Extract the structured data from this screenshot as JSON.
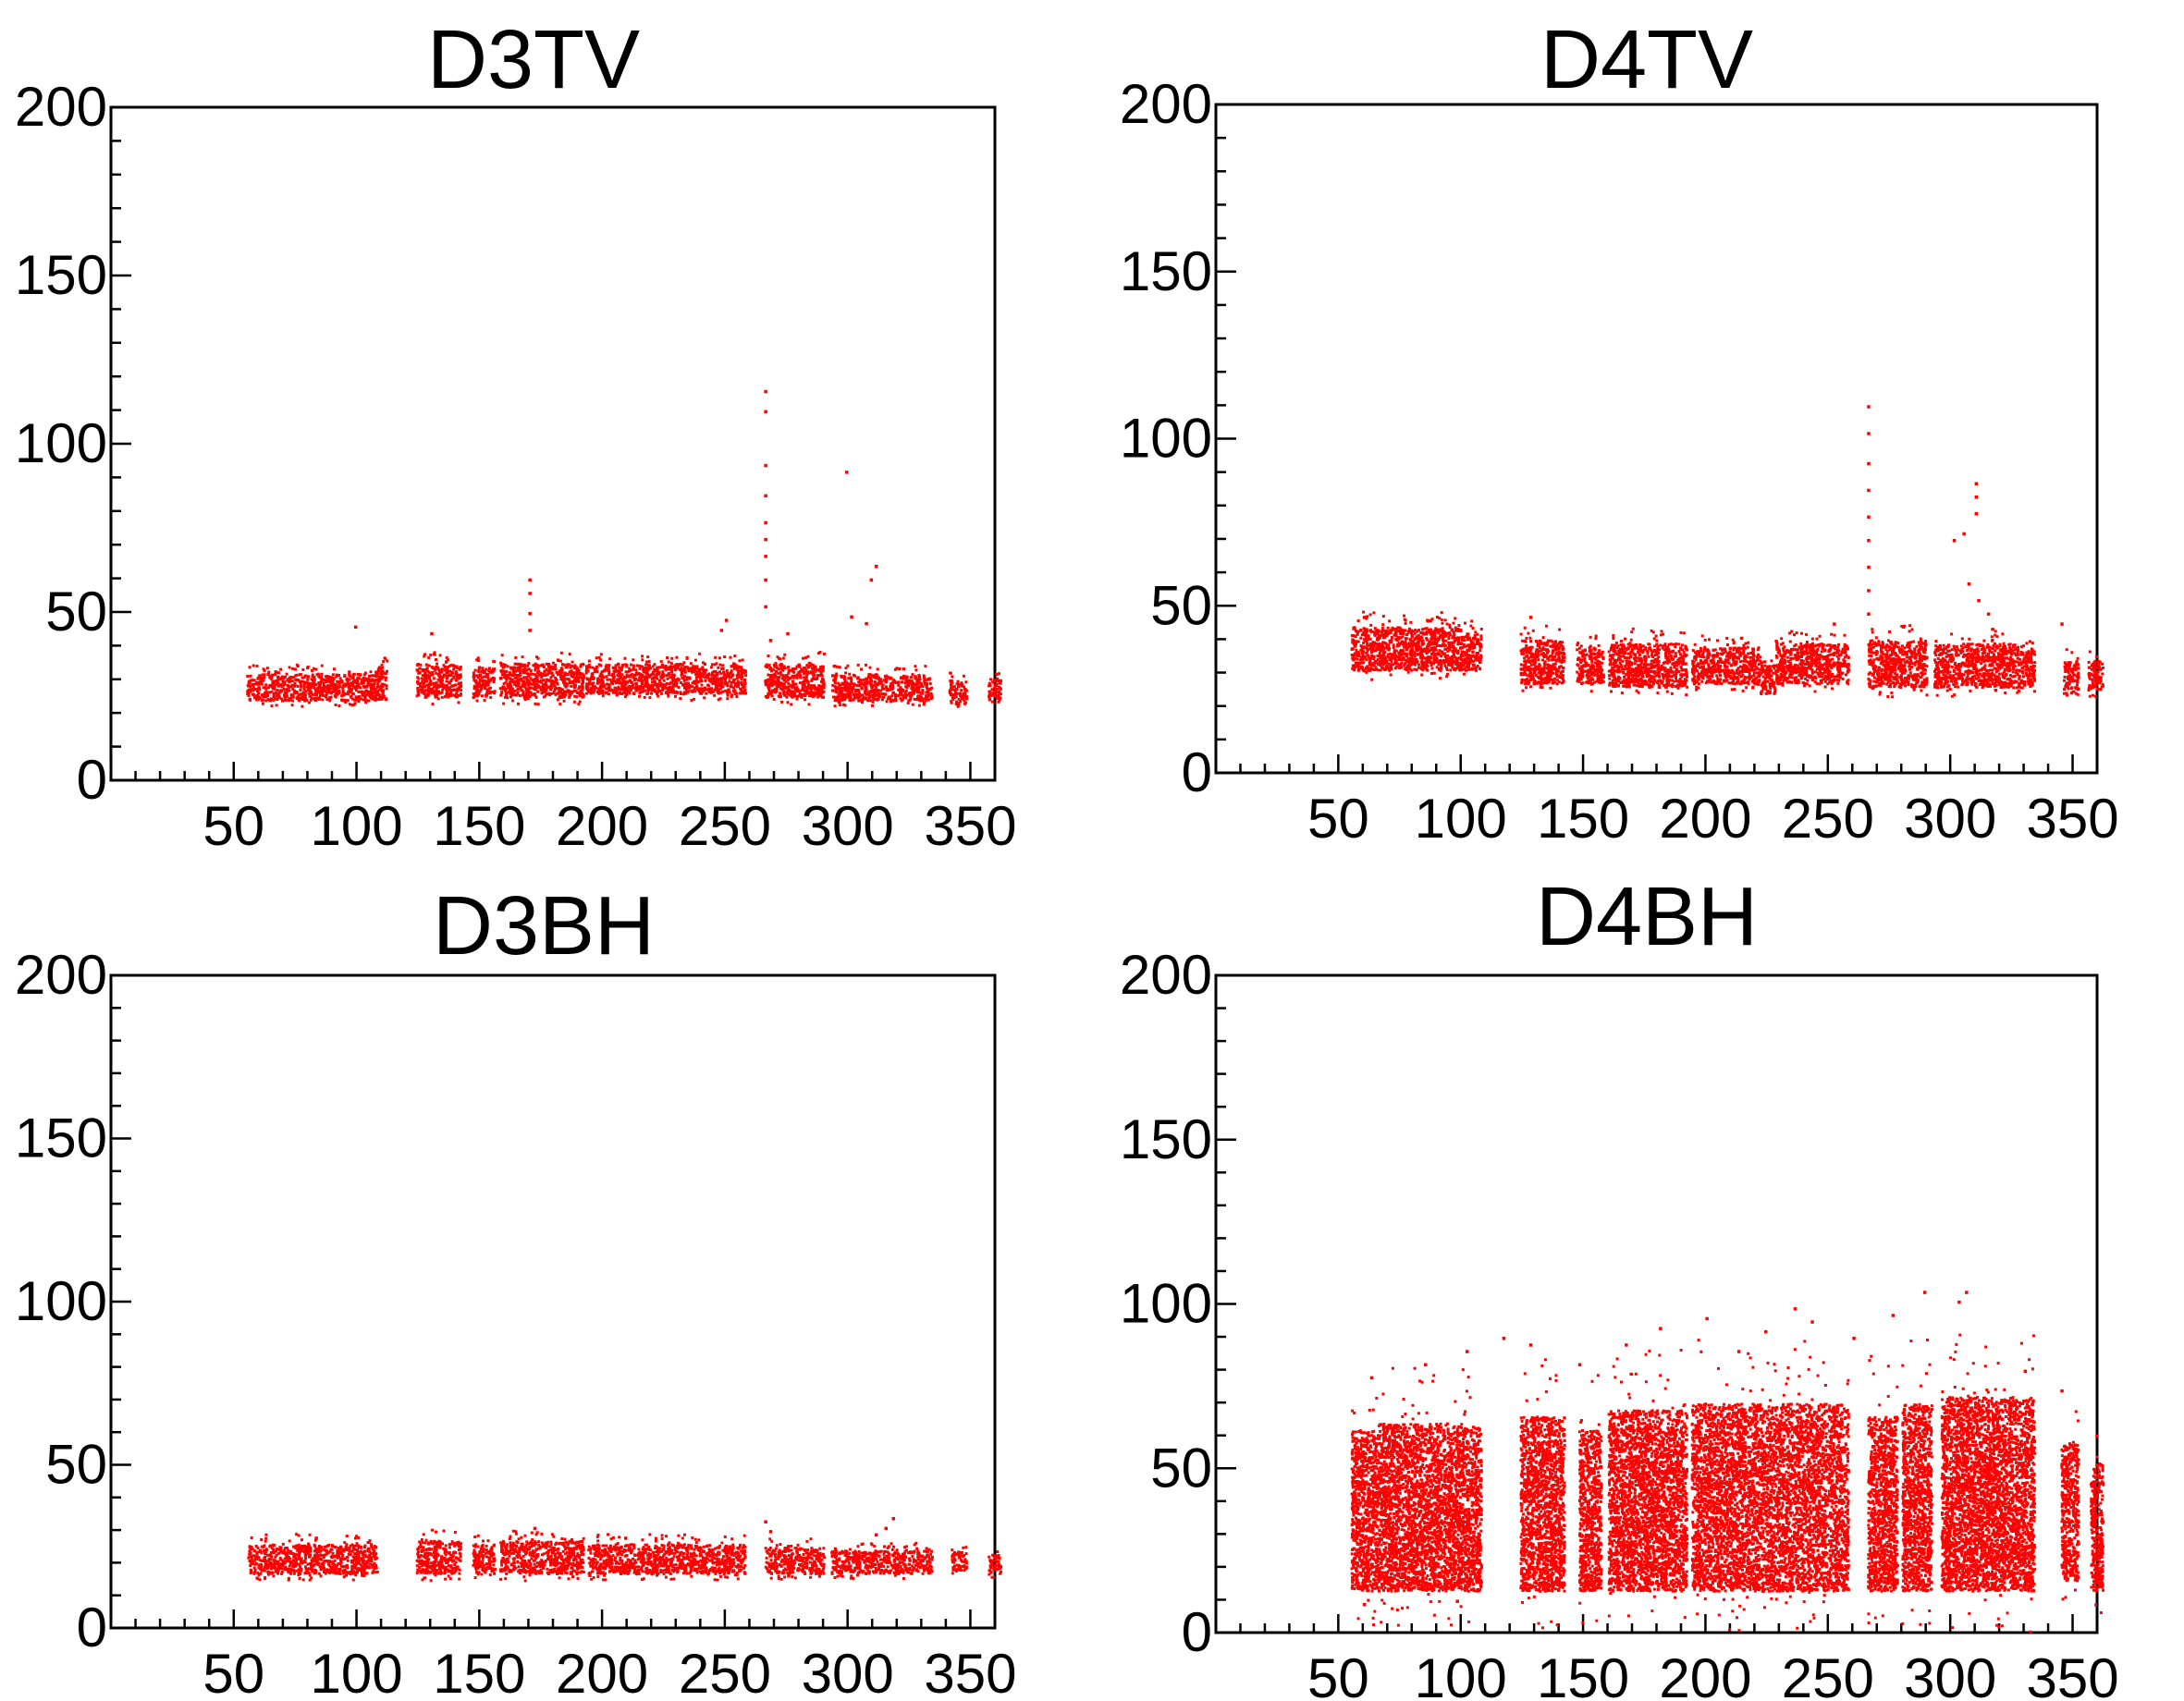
{
  "chart_data": [
    {
      "type": "scatter",
      "title": "D3TV",
      "xlim": [
        0,
        360
      ],
      "ylim": [
        0,
        200
      ],
      "xticks": [
        50,
        100,
        150,
        200,
        250,
        300,
        350
      ],
      "yticks": [
        0,
        50,
        100,
        150,
        200
      ],
      "marker_color": "#ff0000",
      "clusters": [
        {
          "x": [
            55,
            106
          ],
          "y": [
            24,
            32
          ]
        },
        {
          "x": [
            106,
            112
          ],
          "y": [
            24,
            34
          ]
        },
        {
          "x": [
            124,
            142
          ],
          "y": [
            25,
            35
          ]
        },
        {
          "x": [
            147,
            156
          ],
          "y": [
            25,
            34
          ]
        },
        {
          "x": [
            158,
            192
          ],
          "y": [
            25,
            35
          ]
        },
        {
          "x": [
            193,
            258
          ],
          "y": [
            26,
            35
          ]
        },
        {
          "x": [
            266,
            290
          ],
          "y": [
            25,
            35
          ]
        },
        {
          "x": [
            293,
            334
          ],
          "y": [
            24,
            32
          ]
        },
        {
          "x": [
            341,
            348
          ],
          "y": [
            23,
            30
          ]
        },
        {
          "x": [
            357,
            362
          ],
          "y": [
            24,
            31
          ]
        }
      ],
      "outliers": [
        [
          266,
          116
        ],
        [
          266,
          110
        ],
        [
          266,
          94
        ],
        [
          266,
          85
        ],
        [
          266,
          77
        ],
        [
          266,
          72
        ],
        [
          266,
          67
        ],
        [
          266,
          60
        ],
        [
          266,
          52
        ],
        [
          299,
          92
        ],
        [
          311,
          64
        ],
        [
          309,
          60
        ],
        [
          170,
          60
        ],
        [
          170,
          56
        ],
        [
          170,
          50
        ],
        [
          170,
          45
        ],
        [
          99,
          46
        ],
        [
          250,
          48
        ],
        [
          248,
          45
        ],
        [
          301,
          49
        ],
        [
          307,
          47
        ],
        [
          130,
          44
        ],
        [
          268,
          42
        ],
        [
          275,
          44
        ]
      ]
    },
    {
      "type": "scatter",
      "title": "D4TV",
      "xlim": [
        0,
        360
      ],
      "ylim": [
        0,
        200
      ],
      "xticks": [
        50,
        100,
        150,
        200,
        250,
        300,
        350
      ],
      "yticks": [
        0,
        50,
        100,
        150,
        200
      ],
      "marker_color": "#ff0000",
      "clusters": [
        {
          "x": [
            55,
            100
          ],
          "y": [
            31,
            44
          ]
        },
        {
          "x": [
            100,
            108
          ],
          "y": [
            31,
            42
          ]
        },
        {
          "x": [
            124,
            142
          ],
          "y": [
            27,
            40
          ]
        },
        {
          "x": [
            147,
            158
          ],
          "y": [
            27,
            38
          ]
        },
        {
          "x": [
            160,
            192
          ],
          "y": [
            26,
            39
          ]
        },
        {
          "x": [
            194,
            222
          ],
          "y": [
            27,
            38
          ]
        },
        {
          "x": [
            222,
            228
          ],
          "y": [
            24,
            33
          ]
        },
        {
          "x": [
            228,
            258
          ],
          "y": [
            27,
            39
          ]
        },
        {
          "x": [
            266,
            290
          ],
          "y": [
            26,
            40
          ]
        },
        {
          "x": [
            293,
            334
          ],
          "y": [
            26,
            39
          ]
        },
        {
          "x": [
            346,
            352
          ],
          "y": [
            24,
            34
          ]
        },
        {
          "x": [
            356,
            362
          ],
          "y": [
            25,
            34
          ]
        }
      ],
      "outliers": [
        [
          266,
          110
        ],
        [
          266,
          102
        ],
        [
          266,
          93
        ],
        [
          266,
          85
        ],
        [
          266,
          77
        ],
        [
          266,
          70
        ],
        [
          266,
          62
        ],
        [
          266,
          55
        ],
        [
          266,
          48
        ],
        [
          310,
          87
        ],
        [
          310,
          83
        ],
        [
          310,
          78
        ],
        [
          301,
          70
        ],
        [
          305,
          72
        ],
        [
          307,
          57
        ],
        [
          311,
          52
        ],
        [
          315,
          48
        ],
        [
          128,
          47
        ],
        [
          252,
          45
        ],
        [
          345,
          45
        ],
        [
          60,
          47
        ],
        [
          87,
          46
        ]
      ]
    },
    {
      "type": "scatter",
      "title": "D3BH",
      "xlim": [
        0,
        360
      ],
      "ylim": [
        0,
        200
      ],
      "xticks": [
        50,
        100,
        150,
        200,
        250,
        300,
        350
      ],
      "yticks": [
        0,
        50,
        100,
        150,
        200
      ],
      "marker_color": "#ff0000",
      "clusters": [
        {
          "x": [
            55,
            100
          ],
          "y": [
            17,
            26
          ]
        },
        {
          "x": [
            100,
            108
          ],
          "y": [
            17,
            26
          ]
        },
        {
          "x": [
            124,
            142
          ],
          "y": [
            17,
            27
          ]
        },
        {
          "x": [
            147,
            156
          ],
          "y": [
            17,
            26
          ]
        },
        {
          "x": [
            158,
            192
          ],
          "y": [
            17,
            27
          ]
        },
        {
          "x": [
            194,
            258
          ],
          "y": [
            17,
            26
          ]
        },
        {
          "x": [
            266,
            290
          ],
          "y": [
            17,
            25
          ]
        },
        {
          "x": [
            293,
            334
          ],
          "y": [
            17,
            24
          ]
        },
        {
          "x": [
            342,
            348
          ],
          "y": [
            18,
            24
          ]
        },
        {
          "x": [
            357,
            362
          ],
          "y": [
            17,
            23
          ]
        }
      ],
      "outliers": [
        [
          318,
          34
        ],
        [
          315,
          31
        ],
        [
          311,
          29
        ],
        [
          266,
          33
        ],
        [
          268,
          30
        ],
        [
          172,
          31
        ],
        [
          83,
          28
        ],
        [
          209,
          28
        ]
      ]
    },
    {
      "type": "scatter",
      "title": "D4BH",
      "xlim": [
        0,
        360
      ],
      "ylim": [
        0,
        200
      ],
      "xticks": [
        50,
        100,
        150,
        200,
        250,
        300,
        350
      ],
      "yticks": [
        0,
        50,
        100,
        150,
        200
      ],
      "marker_color": "#ff0000",
      "clusters": [
        {
          "x": [
            55,
            66
          ],
          "y": [
            13,
            62
          ]
        },
        {
          "x": [
            66,
            100
          ],
          "y": [
            13,
            64
          ]
        },
        {
          "x": [
            100,
            108
          ],
          "y": [
            13,
            63
          ]
        },
        {
          "x": [
            124,
            142
          ],
          "y": [
            13,
            66
          ]
        },
        {
          "x": [
            148,
            157
          ],
          "y": [
            13,
            62
          ]
        },
        {
          "x": [
            160,
            192
          ],
          "y": [
            13,
            68
          ]
        },
        {
          "x": [
            194,
            258
          ],
          "y": [
            13,
            70
          ]
        },
        {
          "x": [
            266,
            278
          ],
          "y": [
            13,
            66
          ]
        },
        {
          "x": [
            280,
            292
          ],
          "y": [
            13,
            70
          ]
        },
        {
          "x": [
            296,
            334
          ],
          "y": [
            13,
            72
          ]
        },
        {
          "x": [
            345,
            352
          ],
          "y": [
            16,
            58
          ]
        },
        {
          "x": [
            357,
            362
          ],
          "y": [
            13,
            52
          ]
        }
      ],
      "outliers": [
        [
          306,
          104
        ],
        [
          289,
          104
        ],
        [
          236,
          99
        ],
        [
          276,
          97
        ],
        [
          303,
          101
        ],
        [
          200,
          96
        ],
        [
          181,
          93
        ],
        [
          128,
          88
        ],
        [
          243,
          95
        ],
        [
          224,
          92
        ],
        [
          85,
          82
        ],
        [
          63,
          78
        ],
        [
          148,
          82
        ],
        [
          102,
          86
        ],
        [
          260,
          90
        ],
        [
          330,
          80
        ],
        [
          345,
          74
        ],
        [
          213,
          86
        ],
        [
          167,
          88
        ],
        [
          117,
          90
        ],
        [
          60,
          9
        ],
        [
          98,
          10
        ]
      ]
    }
  ]
}
